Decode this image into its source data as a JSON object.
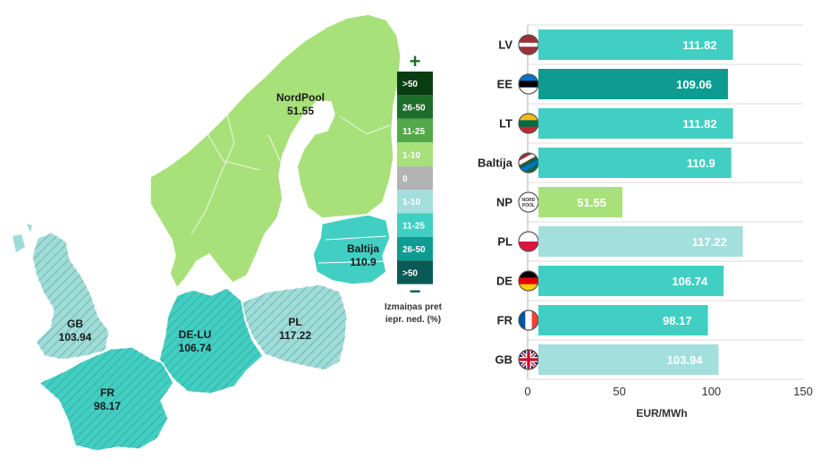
{
  "map": {
    "regions": [
      {
        "id": "nordpool",
        "name": "NordPool",
        "value": "51.55",
        "color": "#a8e07a",
        "hatched": false
      },
      {
        "id": "baltija",
        "name": "Baltija",
        "value": "110.9",
        "color": "#41cfc3",
        "hatched": false
      },
      {
        "id": "pl",
        "name": "PL",
        "value": "117.22",
        "color": "#9edcd8",
        "hatched": true
      },
      {
        "id": "de-lu",
        "name": "DE-LU",
        "value": "106.74",
        "color": "#41cfc3",
        "hatched": true
      },
      {
        "id": "gb",
        "name": "GB",
        "value": "103.94",
        "color": "#9edcd8",
        "hatched": true
      },
      {
        "id": "fr",
        "name": "FR",
        "value": "98.17",
        "color": "#41cfc3",
        "hatched": true
      }
    ],
    "legend": {
      "plus_symbol": "+",
      "minus_symbol": "−",
      "caption_line1": "Izmaiņas pret",
      "caption_line2": "iepr. ned. (%)",
      "bins": [
        {
          "label": ">50",
          "color": "#0b3d12"
        },
        {
          "label": "26-50",
          "color": "#1e6e2b"
        },
        {
          "label": "11-25",
          "color": "#55a848"
        },
        {
          "label": "1-10",
          "color": "#a8e07a"
        },
        {
          "label": "0",
          "color": "#b3b3b3"
        },
        {
          "label": "1-10",
          "color": "#a3dfdc"
        },
        {
          "label": "11-25",
          "color": "#41cfc3"
        },
        {
          "label": "26-50",
          "color": "#0e9b91"
        },
        {
          "label": ">50",
          "color": "#0a5a55"
        }
      ]
    }
  },
  "chart_data": {
    "type": "bar",
    "orientation": "horizontal",
    "categories": [
      "LV",
      "EE",
      "LT",
      "Baltija",
      "NP",
      "PL",
      "DE",
      "FR",
      "GB"
    ],
    "values": [
      111.82,
      109.06,
      111.82,
      110.9,
      51.55,
      117.22,
      106.74,
      98.17,
      103.94
    ],
    "value_labels": [
      "111.82",
      "109.06",
      "111.82",
      "110.9",
      "51.55",
      "117.22",
      "106.74",
      "98.17",
      "103.94"
    ],
    "bar_colors": [
      "#41cfc3",
      "#0e9b91",
      "#41cfc3",
      "#41cfc3",
      "#a8e07a",
      "#a3dfdc",
      "#41cfc3",
      "#41cfc3",
      "#a3dfdc"
    ],
    "flag_icons": [
      "latvia-flag-icon",
      "estonia-flag-icon",
      "lithuania-flag-icon",
      "baltic-flag-icon",
      "nordpool-logo-icon",
      "poland-flag-icon",
      "germany-flag-icon",
      "france-flag-icon",
      "uk-flag-icon"
    ],
    "xlabel": "EUR/MWh",
    "xlim": [
      0,
      150
    ],
    "xticks": [
      0,
      50,
      100,
      150
    ],
    "grid": "horizontal row separators"
  }
}
